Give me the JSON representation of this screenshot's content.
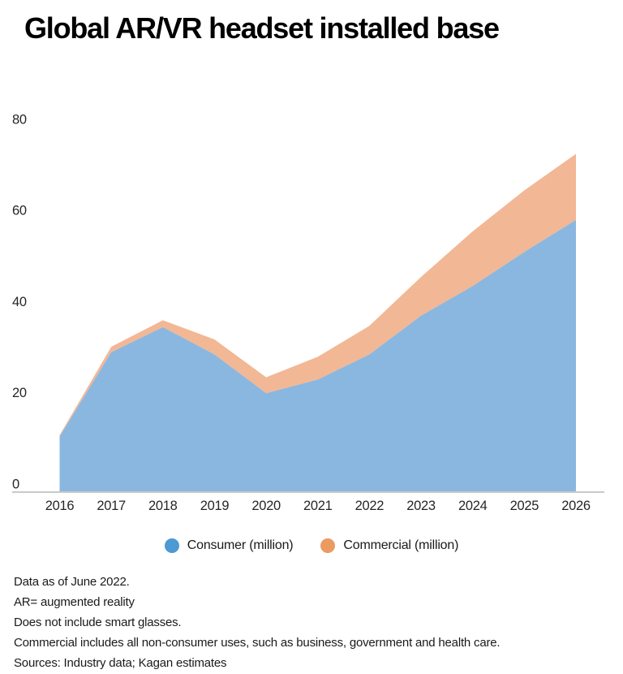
{
  "page": {
    "title": "Global AR/VR headset installed base",
    "background_color": "#ffffff"
  },
  "chart_data": {
    "type": "area",
    "stacked": true,
    "title": "Global AR/VR headset installed base",
    "x": [
      2016,
      2017,
      2018,
      2019,
      2020,
      2021,
      2022,
      2023,
      2024,
      2025,
      2026
    ],
    "x_tick_labels": [
      "2016",
      "2017",
      "2018",
      "2019",
      "2020",
      "2021",
      "2022",
      "2023",
      "2024",
      "2025",
      "2026"
    ],
    "series": [
      {
        "name": "Consumer (million)",
        "legend_color": "#4d99d3",
        "fill_color": "#89b7e0",
        "values": [
          12,
          30.5,
          36,
          30,
          21.5,
          24.5,
          30,
          38.5,
          45,
          52.5,
          59.5
        ]
      },
      {
        "name": "Commercial (million)",
        "legend_color": "#eb9a62",
        "fill_color": "#f2b795",
        "values": [
          0.3,
          1.2,
          1.5,
          3.3,
          3.5,
          5,
          6.3,
          8.5,
          12,
          13.5,
          14.5
        ]
      }
    ],
    "xlabel": "",
    "ylabel": "",
    "ylim": [
      0,
      80
    ],
    "y_ticks": [
      0,
      20,
      40,
      60,
      80
    ],
    "grid": "baseline-only",
    "legend_position": "bottom-center",
    "axis_line_color": "#c9c9c9",
    "tick_label_color": "#262626"
  },
  "legend": {
    "items": [
      {
        "label": "Consumer (million)",
        "color": "#4d99d3"
      },
      {
        "label": "Commercial (million)",
        "color": "#eb9a62"
      }
    ]
  },
  "footnotes": [
    "Data as of June 2022.",
    "AR= augmented reality",
    "Does not include smart glasses.",
    "Commercial includes all non-consumer uses, such as business, government and health care.",
    "Sources: Industry data; Kagan estimates"
  ]
}
